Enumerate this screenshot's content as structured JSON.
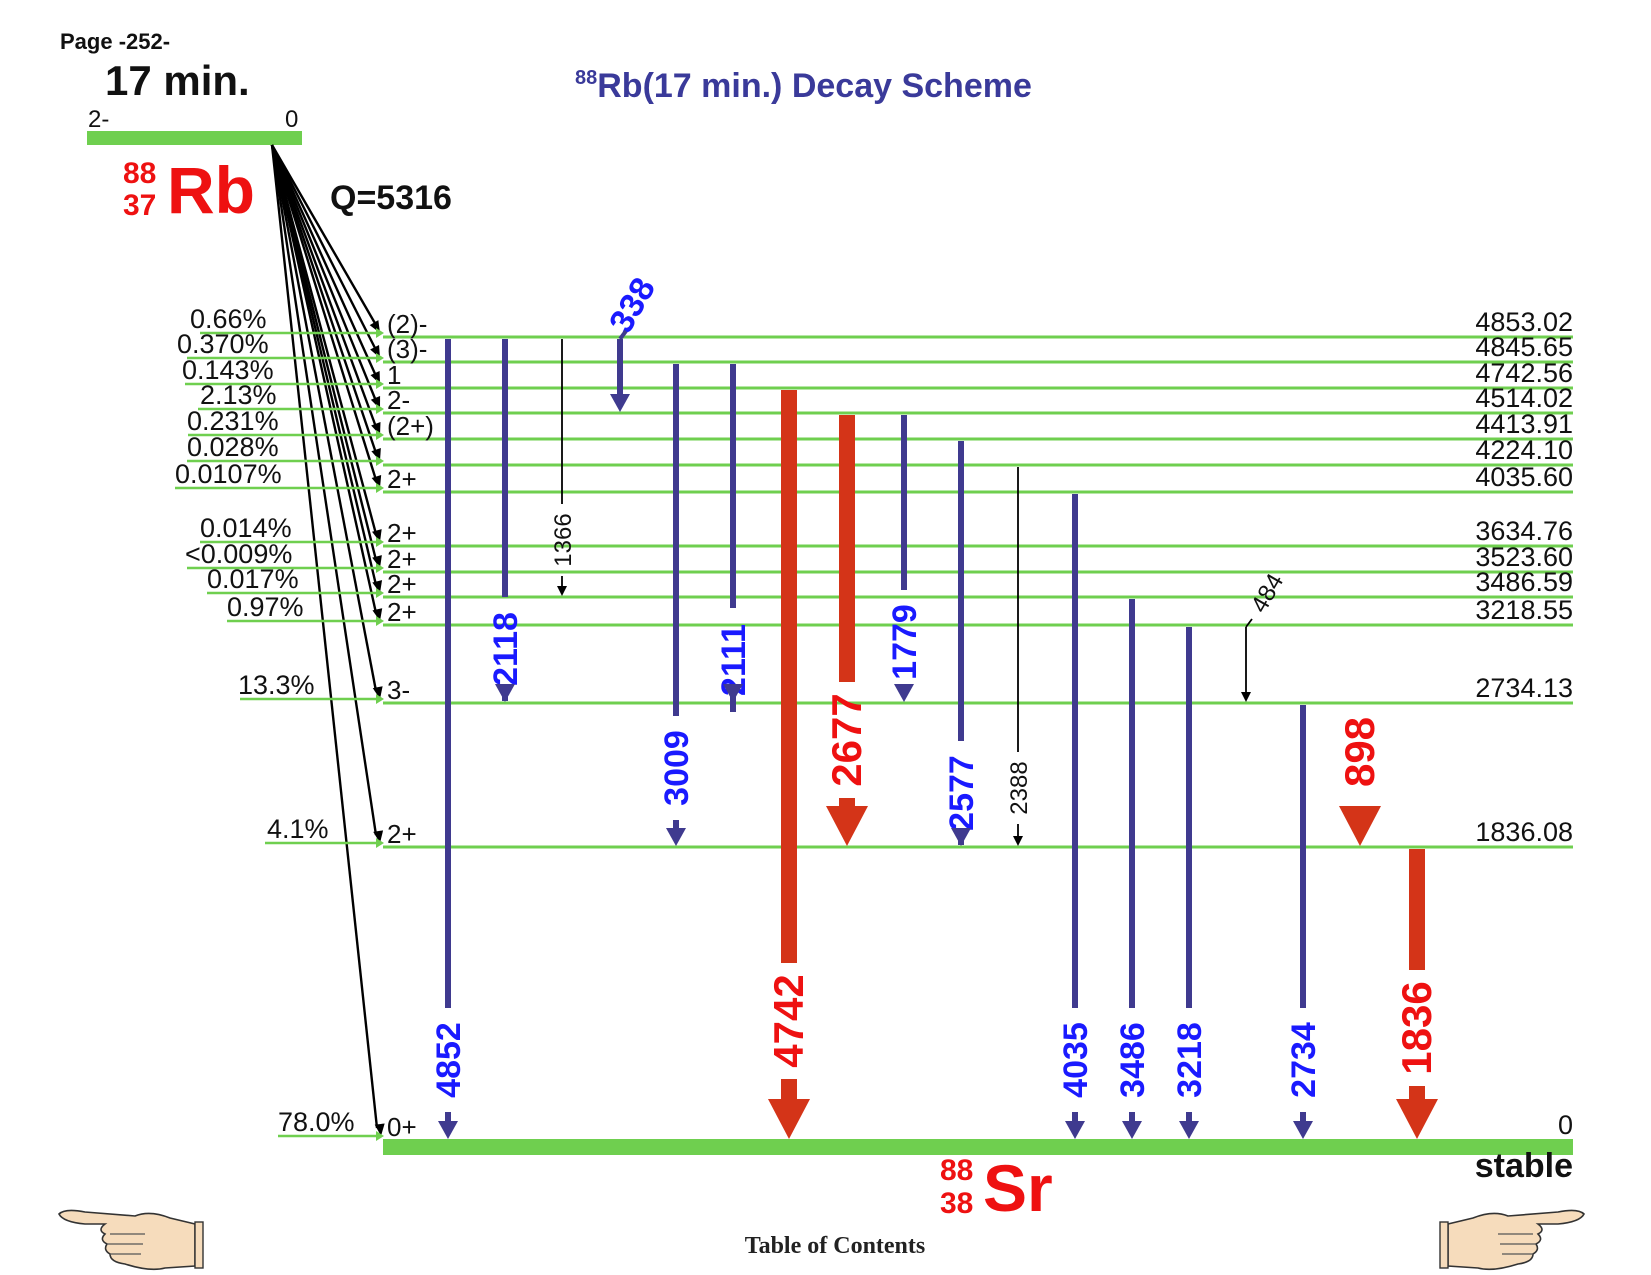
{
  "page_label": "Page -252-",
  "colors": {
    "level": "#6fcf4f",
    "blue": "#3f3a8f",
    "red": "#d43418",
    "bluetext": "#1a1aff",
    "redtext": "#ee1111",
    "title": "#3a3a9a"
  },
  "title": {
    "mass": "88",
    "rest": "Rb(17 min.) Decay Scheme"
  },
  "parent": {
    "halflife": "17 min.",
    "spin": "2-",
    "energy": "0",
    "mass": "88",
    "z": "37",
    "symbol": "Rb",
    "q": "Q=5316"
  },
  "daughter": {
    "mass": "88",
    "z": "38",
    "symbol": "Sr",
    "stable": "stable"
  },
  "levels": [
    {
      "e": "4853.02",
      "spin": "(2)-",
      "feed": "0.66%"
    },
    {
      "e": "4845.65",
      "spin": "(3)-",
      "feed": "0.370%"
    },
    {
      "e": "4742.56",
      "spin": "1",
      "feed": "0.143%"
    },
    {
      "e": "4514.02",
      "spin": "2-",
      "feed": "2.13%"
    },
    {
      "e": "4413.91",
      "spin": "(2+)",
      "feed": "0.231%"
    },
    {
      "e": "4224.10",
      "spin": "",
      "feed": "0.028%"
    },
    {
      "e": "4035.60",
      "spin": "2+",
      "feed": "0.0107%"
    },
    {
      "e": "3634.76",
      "spin": "2+",
      "feed": "0.014%"
    },
    {
      "e": "3523.60",
      "spin": "2+",
      "feed": "<0.009%"
    },
    {
      "e": "3486.59",
      "spin": "2+",
      "feed": "0.017%"
    },
    {
      "e": "3218.55",
      "spin": "2+",
      "feed": "0.97%"
    },
    {
      "e": "2734.13",
      "spin": "3-",
      "feed": "13.3%"
    },
    {
      "e": "1836.08",
      "spin": "2+",
      "feed": "4.1%"
    },
    {
      "e": "0",
      "spin": "0+",
      "feed": "78.0%"
    }
  ],
  "gammas": [
    {
      "label": "4852",
      "from": 0,
      "to": 13,
      "style": "blue"
    },
    {
      "label": "2118",
      "from": 0,
      "to": 11,
      "style": "blue"
    },
    {
      "label": "1366",
      "from": 0,
      "to": 9,
      "style": "thin"
    },
    {
      "label": "338",
      "from": 0,
      "to": 3,
      "style": "blue"
    },
    {
      "label": "3009",
      "from": 1,
      "to": 12,
      "style": "blue"
    },
    {
      "label": "2111",
      "from": 1,
      "to": 11,
      "style": "blue"
    },
    {
      "label": "4742",
      "from": 2,
      "to": 13,
      "style": "red"
    },
    {
      "label": "2677",
      "from": 3,
      "to": 12,
      "style": "red"
    },
    {
      "label": "1779",
      "from": 3,
      "to": 11,
      "style": "blue"
    },
    {
      "label": "2577",
      "from": 4,
      "to": 12,
      "style": "blue"
    },
    {
      "label": "2388",
      "from": 5,
      "to": 12,
      "style": "thin"
    },
    {
      "label": "4035",
      "from": 6,
      "to": 13,
      "style": "blue"
    },
    {
      "label": "3486",
      "from": 9,
      "to": 13,
      "style": "blue"
    },
    {
      "label": "484",
      "from": 10,
      "to": 11,
      "style": "thin"
    },
    {
      "label": "3218",
      "from": 10,
      "to": 13,
      "style": "blue"
    },
    {
      "label": "2734",
      "from": 11,
      "to": 13,
      "style": "blue"
    },
    {
      "label": "898",
      "from": 11,
      "to": 12,
      "style": "red"
    },
    {
      "label": "1836",
      "from": 12,
      "to": 13,
      "style": "red"
    }
  ],
  "footer": {
    "toc": "Table of Contents"
  },
  "icons": {
    "prev": "pointing-hand-left-icon",
    "next": "pointing-hand-right-icon"
  }
}
